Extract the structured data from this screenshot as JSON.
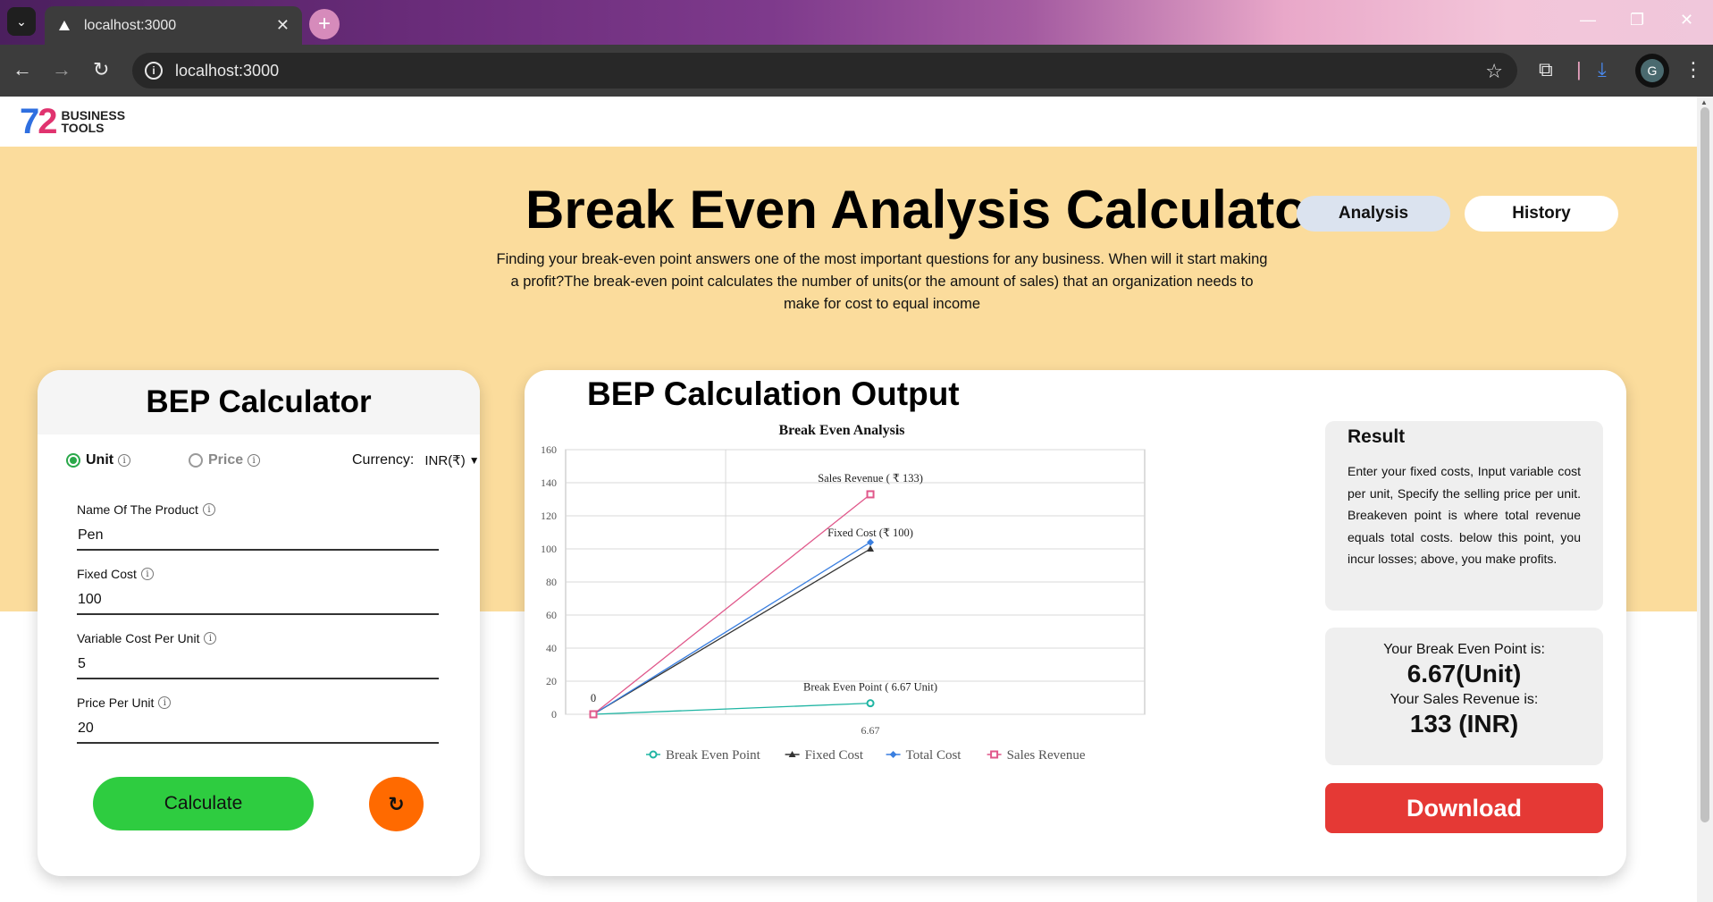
{
  "browser": {
    "tab_title": "localhost:3000",
    "url": "localhost:3000",
    "profile_initial": "G"
  },
  "header": {
    "logo_number": "72",
    "logo_line1": "BUSINESS",
    "logo_line2": "TOOLS"
  },
  "hero": {
    "title": "Break Even Analysis Calculator",
    "nav": {
      "analysis": "Analysis",
      "history": "History"
    },
    "description": "Finding your break-even point answers one of the most important questions for any business. When will it start making a profit?The break-even point calculates the number of units(or the amount of sales) that an organization needs to make for cost to equal income"
  },
  "calculator": {
    "title": "BEP Calculator",
    "modes": {
      "unit": "Unit",
      "price": "Price",
      "selected": "unit"
    },
    "currency_label": "Currency:",
    "currency_value": "INR(₹)",
    "fields": [
      {
        "label": "Name Of The Product",
        "value": "Pen"
      },
      {
        "label": "Fixed Cost",
        "value": "100"
      },
      {
        "label": "Variable Cost Per Unit",
        "value": "5"
      },
      {
        "label": "Price Per Unit",
        "value": "20"
      }
    ],
    "calculate_label": "Calculate",
    "reset_icon": "refresh-icon"
  },
  "output": {
    "title": "BEP Calculation Output",
    "result": {
      "title": "Result",
      "text": "Enter your fixed costs, Input variable cost per unit, Specify the selling price per unit. Breakeven point is where total revenue equals total costs. below this point, you incur losses; above, you make profits."
    },
    "bep_label": "Your Break Even Point is:",
    "bep_value": "6.67(Unit)",
    "revenue_label": "Your Sales Revenue is:",
    "revenue_value": "133 (INR)",
    "download_label": "Download"
  },
  "chart_data": {
    "type": "line",
    "title": "Break Even Analysis",
    "x": [
      0,
      6.67
    ],
    "x_tick_labels": [
      "",
      "6.67"
    ],
    "ylim": [
      0,
      160
    ],
    "y_ticks": [
      0,
      20,
      40,
      60,
      80,
      100,
      120,
      140,
      160
    ],
    "grid": true,
    "legend_position": "bottom",
    "series": [
      {
        "name": "Break Even Point",
        "values": [
          0,
          6.67
        ],
        "color": "#1fb5a3",
        "marker": "circle"
      },
      {
        "name": "Fixed Cost",
        "values": [
          0,
          100
        ],
        "color": "#333333",
        "marker": "triangle"
      },
      {
        "name": "Total Cost",
        "values": [
          0,
          104
        ],
        "color": "#3a7fe0",
        "marker": "diamond"
      },
      {
        "name": "Sales Revenue",
        "values": [
          0,
          133
        ],
        "color": "#e0578a",
        "marker": "square"
      }
    ],
    "annotations": [
      {
        "text": "0",
        "x": 0,
        "y": 0
      },
      {
        "text": "Sales Revenue ( ₹ 133)",
        "x": 6.67,
        "y": 133
      },
      {
        "text": "Fixed Cost (₹ 100)",
        "x": 6.67,
        "y": 100
      },
      {
        "text": "Break Even Point ( 6.67 Unit)",
        "x": 6.67,
        "y": 6.67
      }
    ]
  }
}
